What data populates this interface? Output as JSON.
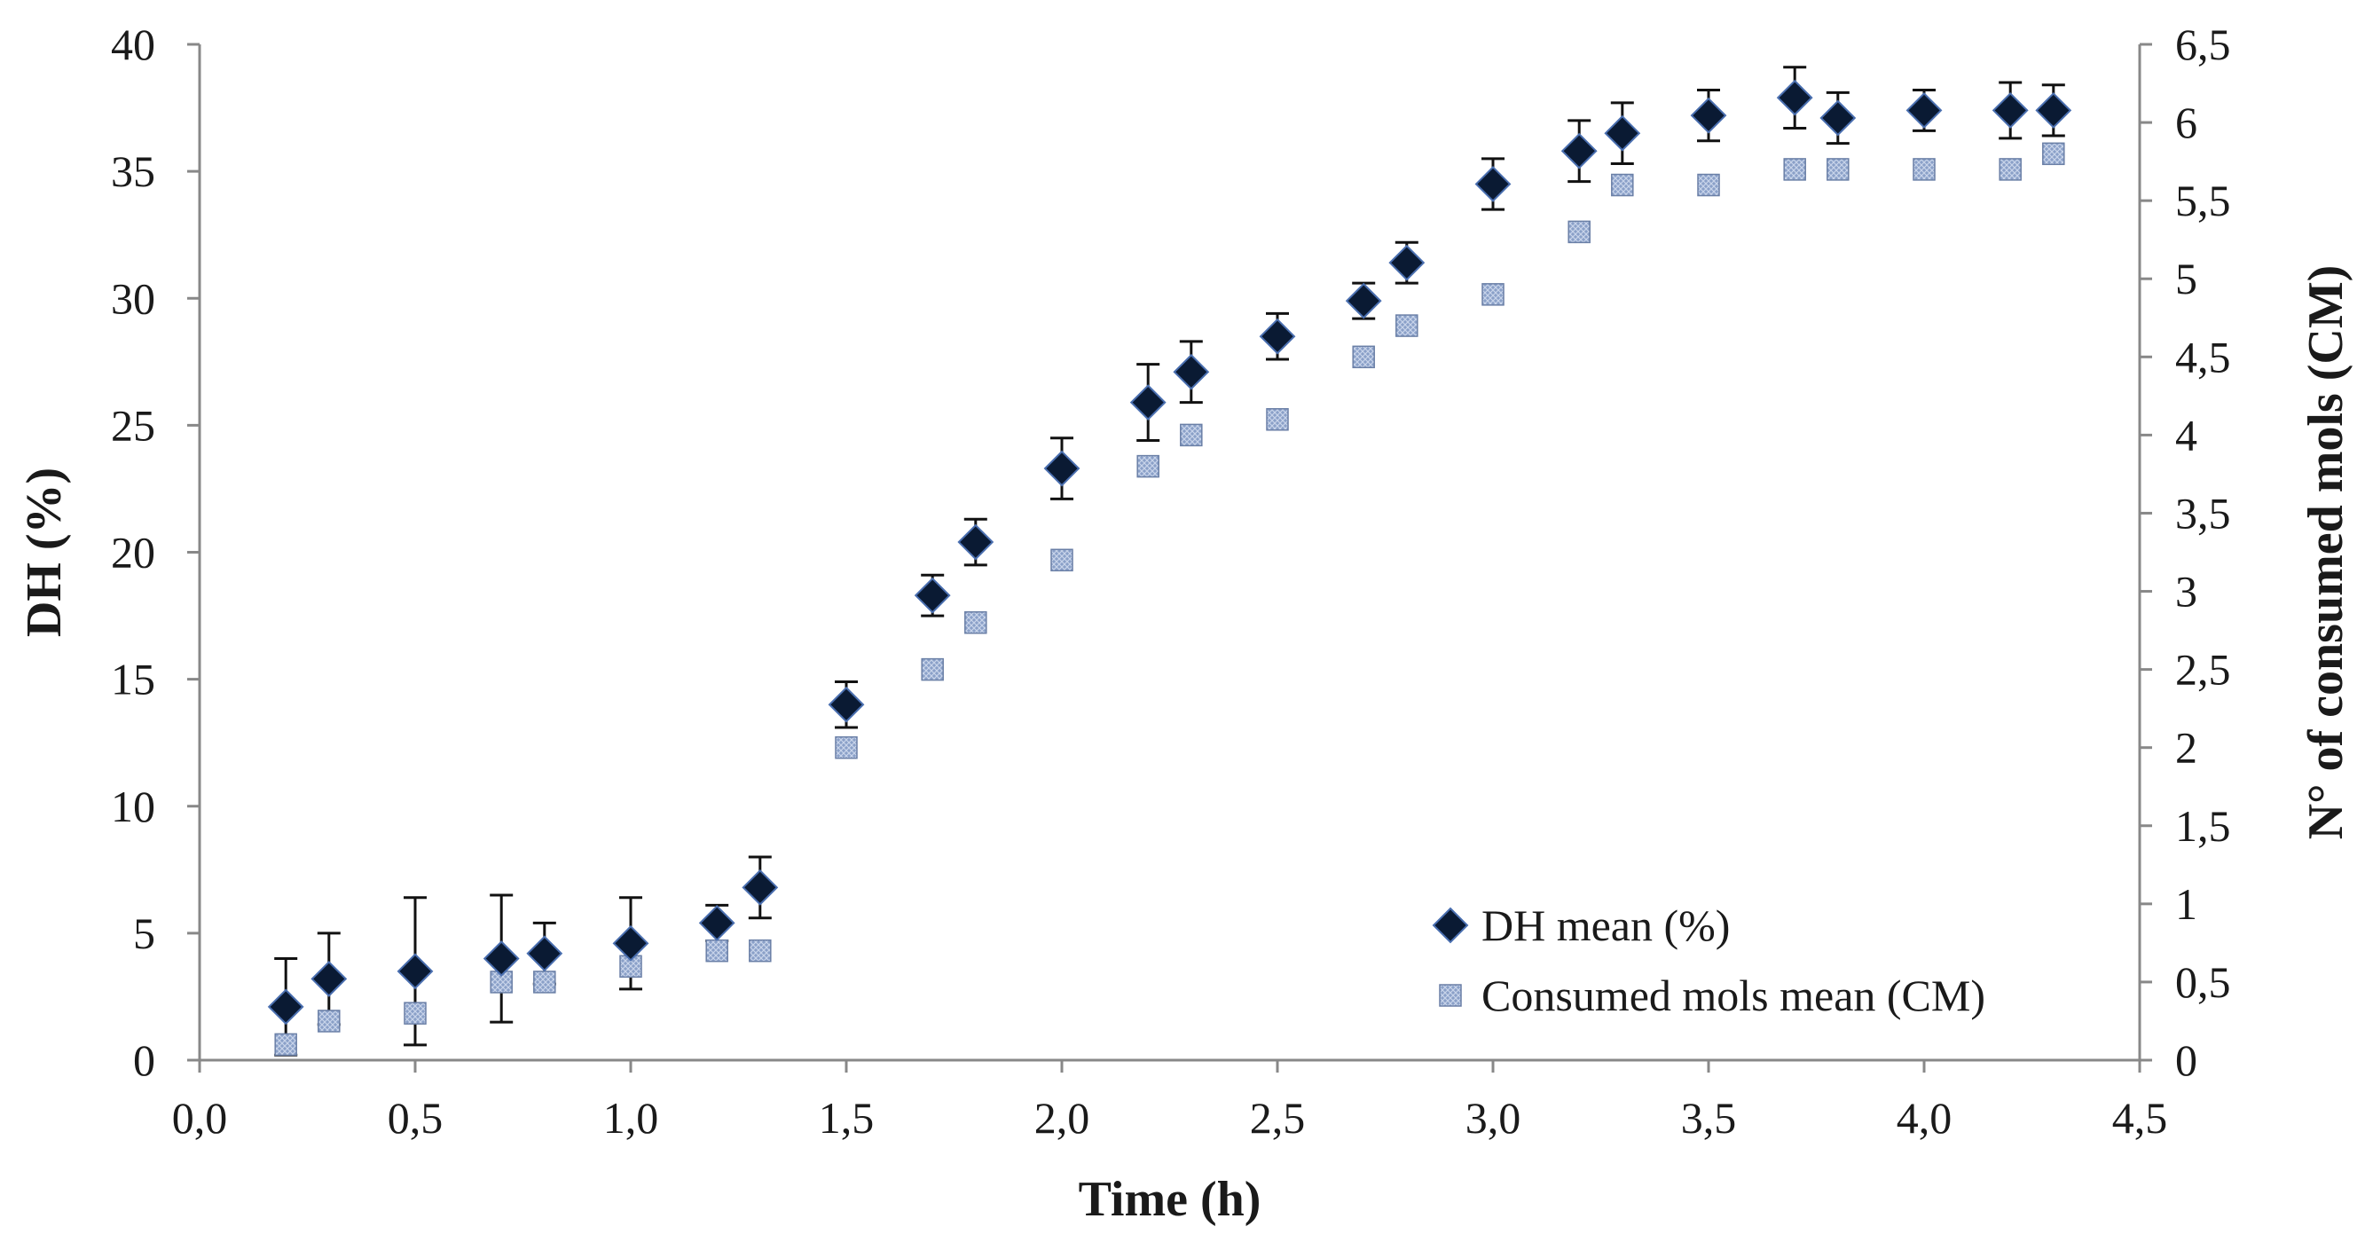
{
  "chart_data": {
    "type": "scatter",
    "title": "",
    "xlabel": "Time (h)",
    "ylabel": "DH (%)",
    "y2label": "N° of consumed mols (CM)",
    "xlim": [
      0,
      4.5
    ],
    "ylim": [
      0,
      40
    ],
    "y2lim": [
      0,
      6.5
    ],
    "grid": false,
    "legend_position": "bottom-right",
    "x_ticks": [
      "0,0",
      "0,5",
      "1,0",
      "1,5",
      "2,0",
      "2,5",
      "3,0",
      "3,5",
      "4,0",
      "4,5"
    ],
    "x_tick_values": [
      0,
      0.5,
      1.0,
      1.5,
      2.0,
      2.5,
      3.0,
      3.5,
      4.0,
      4.5
    ],
    "y_ticks": [
      "0",
      "5",
      "10",
      "15",
      "20",
      "25",
      "30",
      "35",
      "40"
    ],
    "y_tick_values": [
      0,
      5,
      10,
      15,
      20,
      25,
      30,
      35,
      40
    ],
    "y2_ticks": [
      "0",
      "0,5",
      "1",
      "1,5",
      "2",
      "2,5",
      "3",
      "3,5",
      "4",
      "4,5",
      "5",
      "5,5",
      "6",
      "6,5"
    ],
    "y2_tick_values": [
      0,
      0.5,
      1,
      1.5,
      2,
      2.5,
      3,
      3.5,
      4,
      4.5,
      5,
      5.5,
      6,
      6.5
    ],
    "series": [
      {
        "name": "DH mean (%)",
        "axis": "left",
        "marker": "diamond",
        "color": "#0a1a33",
        "x": [
          0.2,
          0.3,
          0.5,
          0.7,
          0.8,
          1.0,
          1.2,
          1.3,
          1.5,
          1.7,
          1.8,
          2.0,
          2.2,
          2.3,
          2.5,
          2.7,
          2.8,
          3.0,
          3.2,
          3.3,
          3.5,
          3.7,
          3.8,
          4.0,
          4.2,
          4.3
        ],
        "y": [
          2.1,
          3.2,
          3.5,
          4.0,
          4.2,
          4.6,
          5.4,
          6.8,
          14.0,
          18.3,
          20.4,
          23.3,
          25.9,
          27.1,
          28.5,
          29.9,
          31.4,
          34.5,
          35.8,
          36.5,
          37.2,
          37.9,
          37.1,
          37.4,
          37.4,
          37.4
        ],
        "err": [
          1.9,
          1.8,
          2.9,
          2.5,
          1.2,
          1.8,
          0.7,
          1.2,
          0.9,
          0.8,
          0.9,
          1.2,
          1.5,
          1.2,
          0.9,
          0.7,
          0.8,
          1.0,
          1.2,
          1.2,
          1.0,
          1.2,
          1.0,
          0.8,
          1.1,
          1.0
        ]
      },
      {
        "name": "Consumed mols mean (CM)",
        "axis": "right",
        "marker": "square",
        "color": "#8aa0c8",
        "x": [
          0.2,
          0.3,
          0.5,
          0.7,
          0.8,
          1.0,
          1.2,
          1.3,
          1.5,
          1.7,
          1.8,
          2.0,
          2.2,
          2.3,
          2.5,
          2.7,
          2.8,
          3.0,
          3.2,
          3.3,
          3.5,
          3.7,
          3.8,
          4.0,
          4.2,
          4.3
        ],
        "y": [
          0.1,
          0.25,
          0.3,
          0.5,
          0.5,
          0.6,
          0.7,
          0.7,
          2.0,
          2.5,
          2.8,
          3.2,
          3.8,
          4.0,
          4.1,
          4.5,
          4.7,
          4.9,
          5.3,
          5.6,
          5.6,
          5.7,
          5.7,
          5.7,
          5.7,
          5.8
        ]
      }
    ]
  }
}
